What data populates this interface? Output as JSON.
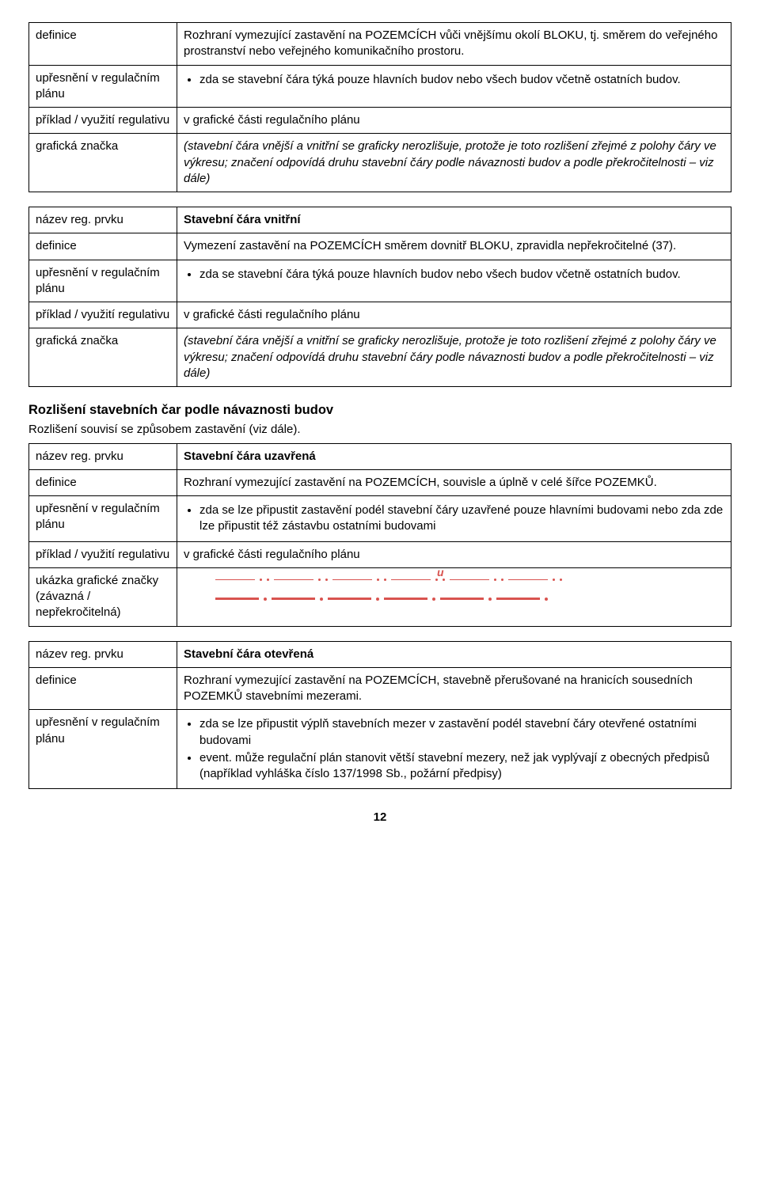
{
  "table1": {
    "rows": {
      "definice": {
        "label": "definice",
        "text1": "Rozhraní vymezující zastavění na ",
        "caps1": "POZEMCÍCH",
        "text2": " vůči vnějšímu okolí ",
        "caps2": "BLOKU",
        "text3": ", tj. směrem do veřejného prostranství nebo veřejného komunikačního prostoru."
      },
      "upresneni": {
        "label": "upřesnění v regulačním plánu",
        "bullet": "zda se stavební čára týká pouze hlavních budov nebo všech budov včetně ostatních budov."
      },
      "priklad": {
        "label": "příklad / využití regulativu",
        "value": "v grafické části regulačního plánu"
      },
      "znacka": {
        "label": "grafická značka",
        "value": "(stavební čára vnější a vnitřní se graficky nerozlišuje, protože je toto rozlišení zřejmé z polohy čáry ve výkresu; značení odpovídá druhu stavební čáry podle návaznosti budov a podle překročitelnosti – viz dále)"
      }
    }
  },
  "table2": {
    "rows": {
      "nazev": {
        "label": "název reg. prvku",
        "value": "Stavební čára vnitřní"
      },
      "definice": {
        "label": "definice",
        "text1": "Vymezení zastavění na ",
        "caps1": "POZEMCÍCH",
        "text2": " směrem dovnitř ",
        "caps2": "BLOKU",
        "text3": ", zpravidla nepřekročitelné (37)."
      },
      "upresneni": {
        "label": "upřesnění v regulačním plánu",
        "bullet": "zda se stavební čára týká pouze hlavních budov nebo všech budov včetně ostatních budov."
      },
      "priklad": {
        "label": "příklad / využití regulativu",
        "value": "v grafické části regulačního plánu"
      },
      "znacka": {
        "label": "grafická značka",
        "value": "(stavební čára vnější a vnitřní se graficky nerozlišuje, protože je toto rozlišení zřejmé z polohy čáry ve výkresu; značení odpovídá druhu stavební čáry podle návaznosti budov a podle překročitelnosti – viz dále)"
      }
    }
  },
  "section": {
    "heading": "Rozlišení stavebních čar podle návaznosti budov",
    "subtext": "Rozlišení souvisí se způsobem zastavění (viz dále)."
  },
  "table3": {
    "rows": {
      "nazev": {
        "label": "název reg. prvku",
        "value": "Stavební čára uzavřená"
      },
      "definice": {
        "label": "definice",
        "text1": "Rozhraní vymezující zastavění na ",
        "caps1": "POZEMCÍCH",
        "text2": ", souvisle a úplně v celé šířce ",
        "caps2": "POZEMKŮ",
        "text3": "."
      },
      "upresneni": {
        "label": "upřesnění v regulačním plánu",
        "bullet": "zda se lze připustit zastavění podél stavební čáry uzavřené pouze hlavními budovami nebo zda zde lze připustit též zástavbu ostatními budovami"
      },
      "priklad": {
        "label": "příklad / využití regulativu",
        "value": "v grafické části regulačního plánu"
      },
      "znacka": {
        "label": "ukázka grafické značky (závazná / nepřekročitelná)",
        "marker_label": "u",
        "colors": {
          "line1": "#d9534f",
          "line2": "#d9534f",
          "label": "#d9534f"
        }
      }
    }
  },
  "table4": {
    "rows": {
      "nazev": {
        "label": "název reg. prvku",
        "value": "Stavební čára otevřená"
      },
      "definice": {
        "label": "definice",
        "text1": "Rozhraní vymezující zastavění na ",
        "caps1": "POZEMCÍCH",
        "text2": ", stavebně přerušované na hranicích sousedních ",
        "caps2": "POZEMKŮ",
        "text3": " stavebními mezerami."
      },
      "upresneni": {
        "label": "upřesnění v regulačním plánu",
        "bullet1": "zda se lze připustit výplň stavebních mezer v zastavění podél stavební čáry otevřené ostatními budovami",
        "bullet2": "event. může regulační plán stanovit větší stavební mezery, než jak vyplývají z obecných předpisů (například vyhláška číslo 137/1998 Sb., požární předpisy)"
      }
    }
  },
  "page_number": "12"
}
